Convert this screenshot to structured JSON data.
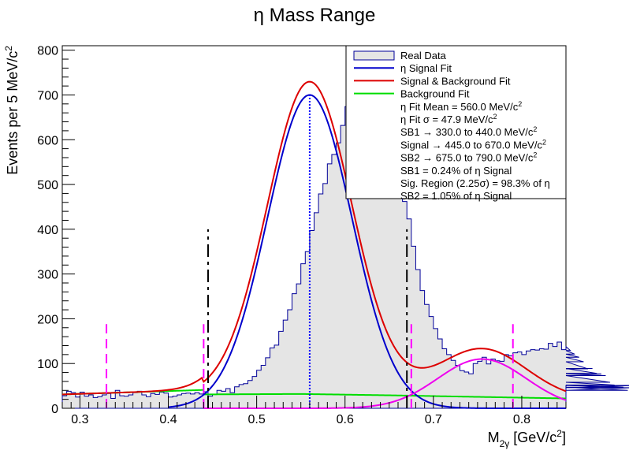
{
  "chart_data": {
    "type": "histogram",
    "title": "η Mass Range",
    "xlabel": {
      "base": "M",
      "sub": "2γ",
      "unit_open": " [GeV/c",
      "unit_sup": "2",
      "unit_close": "]"
    },
    "ylabel": {
      "main": "Events per 5 MeV/c",
      "sup": "2"
    },
    "xlim": [
      0.28,
      0.85
    ],
    "ylim": [
      0,
      810
    ],
    "xticks": [
      0.3,
      0.4,
      0.5,
      0.6,
      0.7,
      0.8
    ],
    "yticks": [
      0,
      100,
      200,
      300,
      400,
      500,
      600,
      700,
      800
    ],
    "colors": {
      "data_fill": "#e5e5e5",
      "data_line": "#000099",
      "signal": "#0000cc",
      "total": "#dd0000",
      "background": "#00dd00",
      "second_peak": "#ee00ee",
      "signal_marker": "#ff00ff",
      "region_marker": "#000000",
      "mean_marker": "#0000ff"
    },
    "fit": {
      "mean": 0.56,
      "sigma": 0.0479,
      "amp": 700,
      "bg": [
        [
          0.28,
          20
        ],
        [
          0.44,
          31
        ],
        [
          0.55,
          32
        ],
        [
          0.65,
          29
        ],
        [
          0.85,
          22
        ]
      ],
      "lowbg": {
        "x0": 0.28,
        "y0": 31,
        "x1": 0.44,
        "y1": 41
      },
      "peak2": {
        "mean": 0.755,
        "sigma": 0.05,
        "amp": 110
      }
    },
    "histogram": {
      "bin_start": 0.28,
      "bin_width": 0.005,
      "counts": [
        28,
        38,
        35,
        25,
        36,
        27,
        30,
        24,
        26,
        30,
        33,
        22,
        40,
        28,
        27,
        30,
        35,
        38,
        30,
        26,
        33,
        31,
        36,
        34,
        25,
        27,
        30,
        33,
        34,
        32,
        35,
        32,
        37,
        27,
        31,
        40,
        38,
        44,
        35,
        48,
        53,
        55,
        62,
        71,
        85,
        96,
        113,
        135,
        141,
        172,
        197,
        220,
        256,
        278,
        323,
        350,
        397,
        437,
        479,
        502,
        546,
        567,
        593,
        632,
        674,
        708,
        738,
        749,
        765,
        723,
        718,
        701,
        675,
        632,
        588,
        545,
        513,
        462,
        423,
        362,
        310,
        263,
        232,
        205,
        178,
        155,
        133,
        120,
        107,
        96,
        84,
        81,
        77,
        100,
        105,
        114,
        99,
        110,
        106,
        105,
        120,
        117,
        124,
        126,
        120,
        128,
        131,
        130,
        133,
        132,
        145,
        138,
        148,
        131,
        138,
        129,
        121,
        114,
        104,
        88,
        89,
        78,
        77,
        73,
        58,
        52,
        51,
        47,
        40,
        46,
        51
      ]
    },
    "region_lines": {
      "sb1_start": 0.33,
      "sb1_end": 0.44,
      "sig_start": 0.445,
      "sig_end": 0.67,
      "sb2_start": 0.675,
      "sb2_end": 0.79
    },
    "legend": {
      "position": "top-right",
      "entries": [
        {
          "label": "Real Data",
          "kind": "box"
        },
        {
          "label": "η Signal Fit",
          "kind": "signal"
        },
        {
          "label": "Signal & Background Fit",
          "kind": "total"
        },
        {
          "label": "Background Fit",
          "kind": "background"
        }
      ],
      "stats": [
        {
          "text": "η Fit Mean = 560.0 MeV/c",
          "sup": "2"
        },
        {
          "text": "η Fit σ = 47.9 MeV/c",
          "sup": "2"
        },
        {
          "text": "SB1 → 330.0 to 440.0 MeV/c",
          "sup": "2"
        },
        {
          "text": "Signal → 445.0 to 670.0 MeV/c",
          "sup": "2"
        },
        {
          "text": "SB2 → 675.0 to 790.0 MeV/c",
          "sup": "2"
        },
        {
          "text": "SB1 = 0.24% of η Signal",
          "sup": ""
        },
        {
          "text": "Sig. Region (2.25σ) = 98.3% of η",
          "sup": ""
        },
        {
          "text": "SB2 = 1.05% of η Signal",
          "sup": ""
        }
      ]
    }
  }
}
